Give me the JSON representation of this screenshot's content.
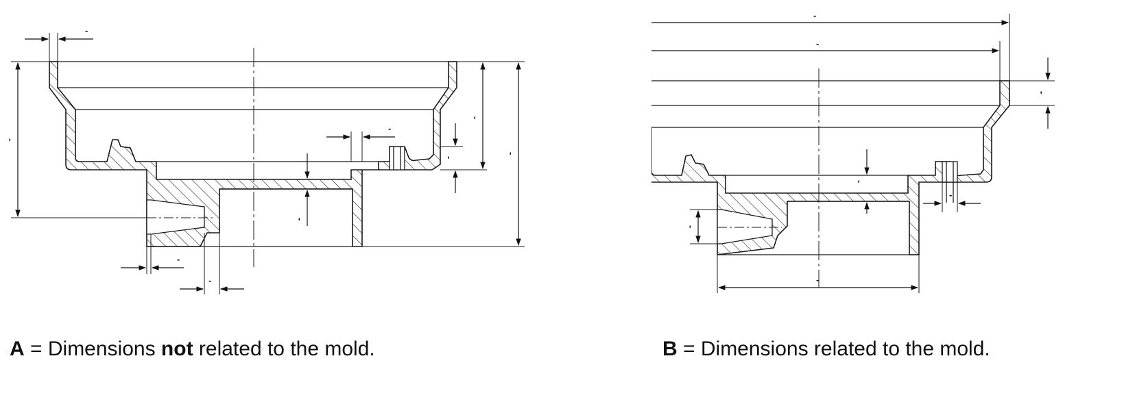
{
  "drawings": {
    "a": {
      "dimension_labels": [
        "-",
        "-",
        "-",
        "-",
        "-",
        "-",
        "-",
        "-",
        "-",
        "-",
        "-"
      ]
    },
    "b": {
      "dimension_labels": [
        "-",
        "-",
        "-",
        "-",
        "-",
        "-",
        "-"
      ]
    }
  },
  "captions": {
    "a": {
      "letter": "A",
      "pre": " = Dimensions ",
      "emphasis": "not",
      "post": " related to the mold."
    },
    "b": {
      "letter": "B",
      "text": " = Dimensions related to the mold."
    }
  },
  "colors": {
    "line": "#1a1a1a",
    "hatch": "#333333",
    "text": "#111111"
  }
}
